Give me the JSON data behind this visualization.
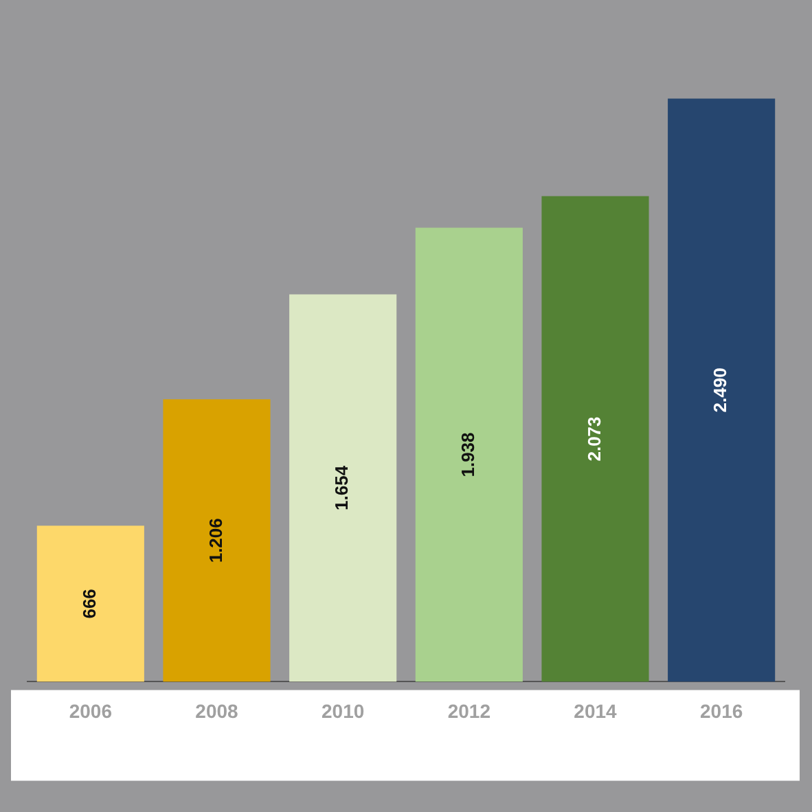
{
  "chart_data": {
    "type": "bar",
    "categories": [
      "2006",
      "2008",
      "2010",
      "2012",
      "2014",
      "2016"
    ],
    "values": [
      666,
      1206,
      1654,
      1938,
      2073,
      2490
    ],
    "colors": [
      "#fdd86a",
      "#d9a200",
      "#dce8c4",
      "#a9d18e",
      "#548235",
      "#26466f"
    ],
    "value_labels": [
      "666",
      "1.206",
      "1.654",
      "1.938",
      "2.073",
      "2.490"
    ],
    "grid": false,
    "legend": false,
    "tick_labels": "x"
  }
}
